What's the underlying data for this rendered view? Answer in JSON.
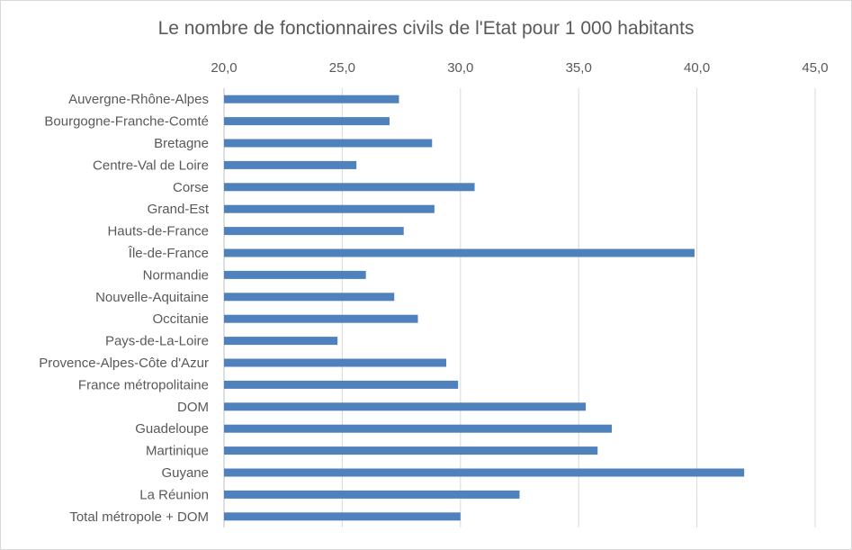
{
  "chart_data": {
    "type": "bar",
    "orientation": "horizontal",
    "title": "Le nombre de fonctionnaires civils de l'Etat pour 1 000 habitants",
    "xlabel": "",
    "ylabel": "",
    "xlim": [
      20,
      45
    ],
    "x_axis_position": "top",
    "x_ticks": [
      "20,0",
      "25,0",
      "30,0",
      "35,0",
      "40,0",
      "45,0"
    ],
    "grid": true,
    "bar_color": "#4f81bd",
    "categories": [
      "Auvergne-Rhône-Alpes",
      "Bourgogne-Franche-Comté",
      "Bretagne",
      "Centre-Val de Loire",
      "Corse",
      "Grand-Est",
      "Hauts-de-France",
      "Île-de-France",
      "Normandie",
      "Nouvelle-Aquitaine",
      "Occitanie",
      "Pays-de-La-Loire",
      "Provence-Alpes-Côte d'Azur",
      "France métropolitaine",
      "DOM",
      "Guadeloupe",
      "Martinique",
      "Guyane",
      "La Réunion",
      "Total métropole + DOM"
    ],
    "values": [
      27.4,
      27.0,
      28.8,
      25.6,
      30.6,
      28.9,
      27.6,
      39.9,
      26.0,
      27.2,
      28.2,
      24.8,
      29.4,
      29.9,
      35.3,
      36.4,
      35.8,
      42.0,
      32.5,
      30.0
    ]
  }
}
